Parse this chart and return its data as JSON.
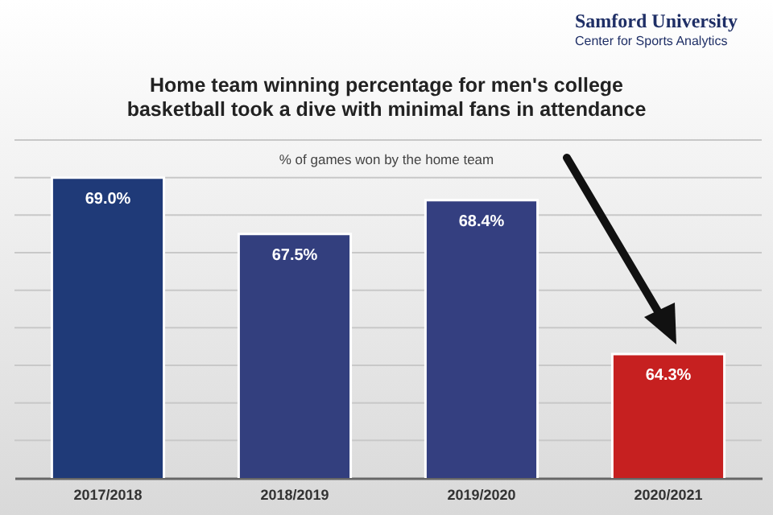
{
  "chart_data": {
    "type": "bar",
    "title": "Home team winning percentage for men's college basketball took a dive with minimal fans in attendance",
    "subtitle": "% of games won by the home team",
    "annotations": [
      "Samford University",
      "Center for Sports Analytics"
    ],
    "categories": [
      "2017/2018",
      "2018/2019",
      "2019/2020",
      "2020/2021"
    ],
    "values": [
      69.0,
      67.5,
      68.4,
      64.3
    ],
    "value_labels": [
      "69.0%",
      "67.5%",
      "68.4%",
      "64.3%"
    ],
    "colors": [
      "#1f3a78",
      "#333f7e",
      "#343f80",
      "#c62020"
    ],
    "ylim": [
      61,
      70
    ],
    "yticks": [
      {
        "value": 62,
        "label": null
      },
      {
        "value": 63,
        "label": null
      },
      {
        "value": 64,
        "label": null
      },
      {
        "value": 65,
        "label": null
      },
      {
        "value": 66,
        "label": null
      },
      {
        "value": 67,
        "label": null
      },
      {
        "value": 68,
        "label": null
      },
      {
        "value": 69,
        "label": null
      },
      {
        "value": 70,
        "label": null
      }
    ],
    "grid": "y",
    "tick_labels": "x"
  }
}
